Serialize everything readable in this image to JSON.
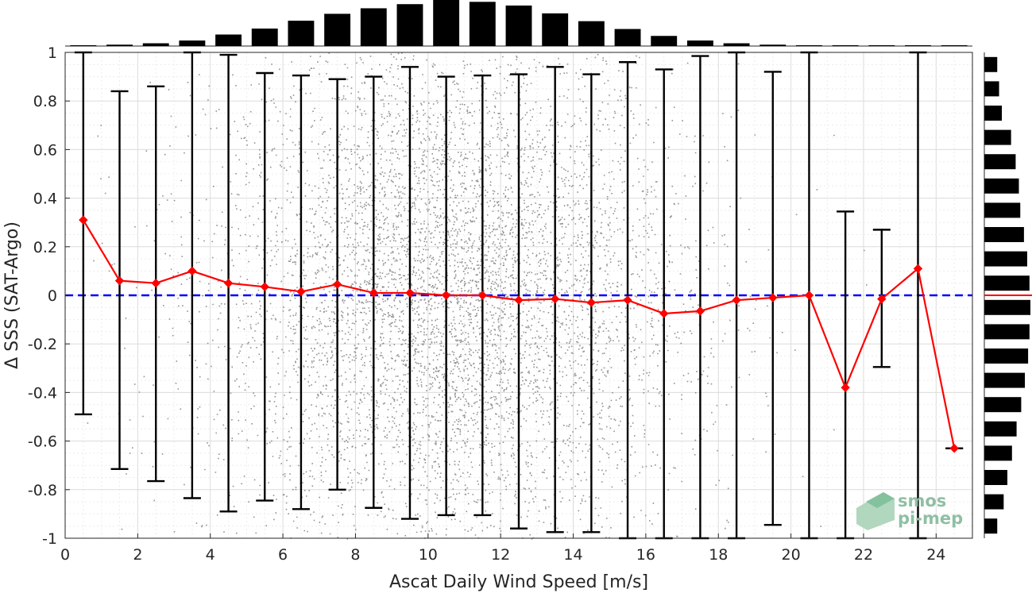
{
  "chart_data": {
    "type": "line",
    "xlabel": "Ascat Daily Wind Speed [m/s]",
    "ylabel": "Δ SSS (SAT-Argo)",
    "xlim": [
      0,
      25
    ],
    "ylim": [
      -1,
      1
    ],
    "x_ticks": [
      "0",
      "2",
      "4",
      "6",
      "8",
      "10",
      "12",
      "14",
      "16",
      "18",
      "20",
      "22",
      "24"
    ],
    "y_ticks": [
      "1",
      "0.8",
      "0.6",
      "0.4",
      "0.2",
      "0",
      "-0.2",
      "-0.4",
      "-0.6",
      "-0.8",
      "-1"
    ],
    "grid": true,
    "zero_line_color": "#0000ff",
    "mean_color": "#ff0000",
    "scatter_color": "#808080",
    "bin_centers": [
      0.5,
      1.5,
      2.5,
      3.5,
      4.5,
      5.5,
      6.5,
      7.5,
      8.5,
      9.5,
      10.5,
      11.5,
      12.5,
      13.5,
      14.5,
      15.5,
      16.5,
      17.5,
      18.5,
      19.5,
      20.5,
      21.5,
      22.5,
      23.5,
      24.5
    ],
    "series": [
      {
        "type": "line",
        "values": [
          0.31,
          0.06,
          0.05,
          0.1,
          0.05,
          0.035,
          0.015,
          0.045,
          0.01,
          0.01,
          0.0,
          0.0,
          -0.02,
          -0.015,
          -0.03,
          -0.02,
          -0.075,
          -0.065,
          -0.02,
          -0.01,
          0.0,
          -0.38,
          -0.015,
          0.11,
          -0.63
        ]
      },
      {
        "type": "errorbar",
        "upper": [
          1.0,
          0.84,
          0.86,
          1.0,
          0.99,
          0.915,
          0.905,
          0.89,
          0.9,
          0.94,
          0.9,
          0.905,
          0.91,
          0.94,
          0.91,
          0.96,
          0.93,
          0.985,
          1.0,
          0.92,
          1.0,
          0.345,
          0.27,
          1.0,
          -0.63
        ],
        "lower": [
          -0.49,
          -0.715,
          -0.765,
          -0.835,
          -0.89,
          -0.845,
          -0.88,
          -0.8,
          -0.875,
          -0.92,
          -0.905,
          -0.905,
          -0.96,
          -0.975,
          -0.975,
          -1.0,
          -1.0,
          -1.0,
          -1.0,
          -0.945,
          -1.0,
          -1.0,
          -0.295,
          -1.0,
          -0.63
        ]
      }
    ],
    "histogram_top": {
      "bins": [
        0.5,
        1.5,
        2.5,
        3.5,
        4.5,
        5.5,
        6.5,
        7.5,
        8.5,
        9.5,
        10.5,
        11.5,
        12.5,
        13.5,
        14.5,
        15.5,
        16.5,
        17.5,
        18.5,
        19.5,
        20.5,
        21.5,
        22.5,
        23.5,
        24.5
      ],
      "relative_counts": [
        0.01,
        0.03,
        0.06,
        0.12,
        0.25,
        0.38,
        0.55,
        0.7,
        0.82,
        0.91,
        1.0,
        0.96,
        0.88,
        0.71,
        0.54,
        0.37,
        0.22,
        0.12,
        0.06,
        0.03,
        0.015,
        0.008,
        0.005,
        0.003,
        0.002
      ]
    },
    "histogram_right": {
      "bin_centers": [
        0.95,
        0.85,
        0.75,
        0.65,
        0.55,
        0.45,
        0.35,
        0.25,
        0.15,
        0.05,
        -0.05,
        -0.15,
        -0.25,
        -0.35,
        -0.45,
        -0.55,
        -0.65,
        -0.75,
        -0.85,
        -0.95
      ],
      "relative_counts": [
        0.28,
        0.32,
        0.38,
        0.58,
        0.68,
        0.75,
        0.78,
        0.86,
        0.93,
        0.98,
        1.0,
        0.98,
        0.95,
        0.88,
        0.8,
        0.7,
        0.6,
        0.5,
        0.42,
        0.28
      ]
    }
  },
  "logo": {
    "line1": "smos",
    "line2": "pi-mep"
  }
}
